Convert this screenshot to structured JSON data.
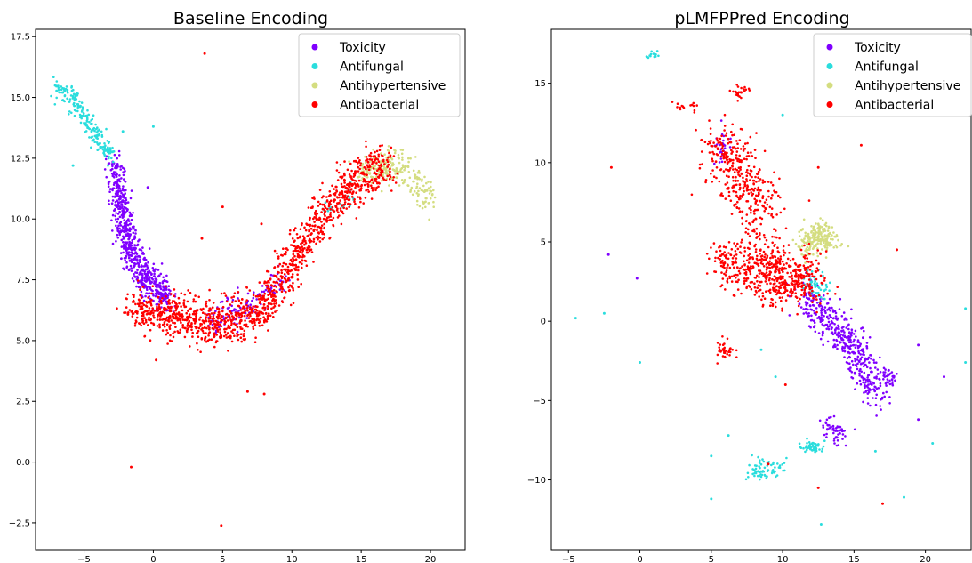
{
  "colors": {
    "Toxicity": "#8000ff",
    "Antifungal": "#2adddd",
    "Antihypertensive": "#d4dd80",
    "Antibacterial": "#ff0000"
  },
  "chart_data": [
    {
      "type": "scatter",
      "title": "Baseline Encoding",
      "xlabel": "",
      "ylabel": "",
      "xlim": [
        -8.5,
        22.5
      ],
      "ylim": [
        -3.6,
        17.8
      ],
      "xticks": [
        -5,
        0,
        5,
        10,
        15,
        20
      ],
      "yticks": [
        -2.5,
        0.0,
        2.5,
        5.0,
        7.5,
        10.0,
        12.5,
        15.0,
        17.5
      ],
      "ytick_labels": [
        "−2.5",
        "0.0",
        "2.5",
        "5.0",
        "7.5",
        "10.0",
        "12.5",
        "15.0",
        "17.5"
      ],
      "xtick_labels": [
        "−5",
        "0",
        "5",
        "10",
        "15",
        "20"
      ],
      "grid": false,
      "legend": "top-right",
      "series": [
        {
          "name": "Toxicity",
          "clusters": [
            {
              "path": [
                [
                  -2.8,
                  12.2
                ],
                [
                  -2.5,
                  11.0
                ],
                [
                  -2.0,
                  9.5
                ],
                [
                  -1.5,
                  8.5
                ],
                [
                  -0.8,
                  7.8
                ],
                [
                  0.0,
                  7.2
                ],
                [
                  1.0,
                  6.8
                ]
              ],
              "n": 700,
              "spread": 0.35
            },
            {
              "path": [
                [
                  4.0,
                  5.8
                ],
                [
                  6.0,
                  6.2
                ],
                [
                  8.0,
                  6.8
                ],
                [
                  9.5,
                  7.6
                ]
              ],
              "n": 120,
              "spread": 0.35
            }
          ]
        },
        {
          "name": "Antifungal",
          "clusters": [
            {
              "path": [
                [
                  -7.0,
                  15.5
                ],
                [
                  -6.0,
                  15.0
                ],
                [
                  -5.0,
                  14.2
                ],
                [
                  -4.0,
                  13.3
                ],
                [
                  -3.0,
                  12.6
                ]
              ],
              "n": 220,
              "spread": 0.2
            },
            {
              "path": [
                [
                  12.5,
                  10.4
                ],
                [
                  14.5,
                  10.8
                ]
              ],
              "n": 25,
              "spread": 0.25
            }
          ]
        },
        {
          "name": "Antihypertensive",
          "clusters": [
            {
              "path": [
                [
                  15.0,
                  11.8
                ],
                [
                  16.5,
                  12.0
                ],
                [
                  18.0,
                  12.2
                ],
                [
                  19.0,
                  11.4
                ],
                [
                  20.0,
                  10.8
                ]
              ],
              "n": 250,
              "spread": 0.35
            }
          ]
        },
        {
          "name": "Antibacterial",
          "clusters": [
            {
              "path": [
                [
                  -1.5,
                  6.2
                ],
                [
                  0.0,
                  6.2
                ],
                [
                  2.0,
                  6.0
                ],
                [
                  4.0,
                  5.7
                ],
                [
                  6.0,
                  5.8
                ],
                [
                  8.0,
                  6.5
                ],
                [
                  9.5,
                  7.6
                ],
                [
                  11.0,
                  9.2
                ],
                [
                  12.5,
                  10.3
                ],
                [
                  14.0,
                  11.2
                ],
                [
                  15.5,
                  12.0
                ],
                [
                  17.0,
                  12.3
                ]
              ],
              "n": 1400,
              "spread": 0.45
            }
          ]
        }
      ],
      "outliers": [
        {
          "x": 3.7,
          "y": 16.8,
          "s": "Antibacterial"
        },
        {
          "x": -1.6,
          "y": -0.2,
          "s": "Antibacterial"
        },
        {
          "x": 4.9,
          "y": -2.6,
          "s": "Antibacterial"
        },
        {
          "x": 8.0,
          "y": 2.8,
          "s": "Antibacterial"
        },
        {
          "x": 6.8,
          "y": 2.9,
          "s": "Antibacterial"
        },
        {
          "x": 0.2,
          "y": 4.2,
          "s": "Antibacterial"
        },
        {
          "x": 0.0,
          "y": 13.8,
          "s": "Antifungal"
        },
        {
          "x": -2.2,
          "y": 13.6,
          "s": "Antifungal"
        },
        {
          "x": -5.8,
          "y": 12.2,
          "s": "Antifungal"
        },
        {
          "x": -0.4,
          "y": 11.3,
          "s": "Toxicity"
        },
        {
          "x": 5.0,
          "y": 10.5,
          "s": "Antibacterial"
        },
        {
          "x": 7.8,
          "y": 9.8,
          "s": "Antibacterial"
        },
        {
          "x": 3.5,
          "y": 9.2,
          "s": "Antibacterial"
        }
      ]
    },
    {
      "type": "scatter",
      "title": "pLMFPPred Encoding",
      "xlabel": "",
      "ylabel": "",
      "xlim": [
        -6.2,
        23.2
      ],
      "ylim": [
        -14.4,
        18.4
      ],
      "xticks": [
        -5,
        0,
        5,
        10,
        15,
        20
      ],
      "yticks": [
        -10,
        -5,
        0,
        5,
        10,
        15
      ],
      "xtick_labels": [
        "−5",
        "0",
        "5",
        "10",
        "15",
        "20"
      ],
      "ytick_labels": [
        "−10",
        "−5",
        "0",
        "5",
        "10",
        "15"
      ],
      "grid": false,
      "legend": "top-right",
      "series": [
        {
          "name": "Toxicity",
          "clusters": [
            {
              "path": [
                [
                  11.5,
                  2.0
                ],
                [
                  12.5,
                  0.5
                ],
                [
                  14.0,
                  -0.8
                ],
                [
                  15.5,
                  -2.0
                ],
                [
                  16.0,
                  -4.0
                ],
                [
                  17.0,
                  -4.5
                ]
              ],
              "n": 450,
              "spread": 0.55
            },
            {
              "path": [
                [
                  13.0,
                  -6.5
                ],
                [
                  14.5,
                  -7.5
                ]
              ],
              "n": 60,
              "spread": 0.3
            },
            {
              "path": [
                [
                  17.5,
                  -3.5
                ]
              ],
              "n": 30,
              "spread": 0.3
            },
            {
              "path": [
                [
                  6.0,
                  12.0
                ],
                [
                  5.5,
                  10.0
                ]
              ],
              "n": 25,
              "spread": 0.3
            }
          ]
        },
        {
          "name": "Antifungal",
          "clusters": [
            {
              "path": [
                [
                  8.0,
                  -9.5
                ],
                [
                  9.5,
                  -9.3
                ]
              ],
              "n": 70,
              "spread": 0.35
            },
            {
              "path": [
                [
                  11.5,
                  -7.8
                ],
                [
                  12.5,
                  -8.0
                ]
              ],
              "n": 50,
              "spread": 0.25
            },
            {
              "path": [
                [
                  12.0,
                  2.8
                ],
                [
                  13.0,
                  1.5
                ]
              ],
              "n": 50,
              "spread": 0.35
            },
            {
              "path": [
                [
                  0.5,
                  16.6
                ],
                [
                  1.5,
                  17.0
                ]
              ],
              "n": 15,
              "spread": 0.12
            }
          ]
        },
        {
          "name": "Antihypertensive",
          "clusters": [
            {
              "path": [
                [
                  11.5,
                  4.5
                ],
                [
                  12.5,
                  5.5
                ],
                [
                  13.5,
                  5.0
                ]
              ],
              "n": 220,
              "spread": 0.45
            }
          ]
        },
        {
          "name": "Antibacterial",
          "clusters": [
            {
              "path": [
                [
                  5.5,
                  11.5
                ],
                [
                  7.0,
                  9.0
                ],
                [
                  8.0,
                  7.5
                ],
                [
                  9.0,
                  6.0
                ]
              ],
              "n": 380,
              "spread": 0.9
            },
            {
              "path": [
                [
                  7.0,
                  4.0
                ],
                [
                  9.0,
                  3.0
                ],
                [
                  10.5,
                  2.5
                ],
                [
                  12.0,
                  3.0
                ]
              ],
              "n": 500,
              "spread": 0.85
            },
            {
              "path": [
                [
                  5.5,
                  4.5
                ],
                [
                  6.5,
                  2.5
                ]
              ],
              "n": 60,
              "spread": 0.45
            },
            {
              "path": [
                [
                  6.0,
                  -1.8
                ]
              ],
              "n": 35,
              "spread": 0.3
            },
            {
              "path": [
                [
                  2.5,
                  13.6
                ],
                [
                  4.0,
                  13.6
                ]
              ],
              "n": 15,
              "spread": 0.15
            },
            {
              "path": [
                [
                  7.0,
                  14.4
                ]
              ],
              "n": 25,
              "spread": 0.3
            }
          ]
        }
      ],
      "outliers": [
        {
          "x": -4.5,
          "y": 0.2,
          "s": "Antifungal"
        },
        {
          "x": -2.5,
          "y": 0.5,
          "s": "Antifungal"
        },
        {
          "x": -0.2,
          "y": 2.7,
          "s": "Toxicity"
        },
        {
          "x": -2.0,
          "y": 9.7,
          "s": "Antibacterial"
        },
        {
          "x": -2.2,
          "y": 4.2,
          "s": "Toxicity"
        },
        {
          "x": 0.0,
          "y": -2.6,
          "s": "Antifungal"
        },
        {
          "x": 10.0,
          "y": 13.0,
          "s": "Antifungal"
        },
        {
          "x": 15.5,
          "y": 11.1,
          "s": "Antibacterial"
        },
        {
          "x": 12.5,
          "y": 9.7,
          "s": "Antibacterial"
        },
        {
          "x": 18.0,
          "y": 4.5,
          "s": "Antibacterial"
        },
        {
          "x": 10.2,
          "y": -4.0,
          "s": "Antibacterial"
        },
        {
          "x": 12.5,
          "y": -10.5,
          "s": "Antibacterial"
        },
        {
          "x": 17.0,
          "y": -11.5,
          "s": "Antibacterial"
        },
        {
          "x": 9.0,
          "y": -9.0,
          "s": "Antibacterial"
        },
        {
          "x": 19.5,
          "y": -1.5,
          "s": "Toxicity"
        },
        {
          "x": 19.5,
          "y": -6.2,
          "s": "Toxicity"
        },
        {
          "x": 20.5,
          "y": -7.7,
          "s": "Antifungal"
        },
        {
          "x": 21.3,
          "y": -3.5,
          "s": "Toxicity"
        },
        {
          "x": 22.8,
          "y": 0.8,
          "s": "Antifungal"
        },
        {
          "x": 22.8,
          "y": -2.6,
          "s": "Antifungal"
        },
        {
          "x": 16.5,
          "y": -8.2,
          "s": "Antifungal"
        },
        {
          "x": 18.5,
          "y": -11.1,
          "s": "Antifungal"
        },
        {
          "x": 5.0,
          "y": -11.2,
          "s": "Antifungal"
        },
        {
          "x": 5.0,
          "y": -8.5,
          "s": "Antifungal"
        },
        {
          "x": 6.2,
          "y": -7.2,
          "s": "Antifungal"
        },
        {
          "x": 12.7,
          "y": -12.8,
          "s": "Antifungal"
        },
        {
          "x": 9.5,
          "y": -3.5,
          "s": "Antifungal"
        },
        {
          "x": 8.5,
          "y": -1.8,
          "s": "Antifungal"
        }
      ]
    }
  ]
}
